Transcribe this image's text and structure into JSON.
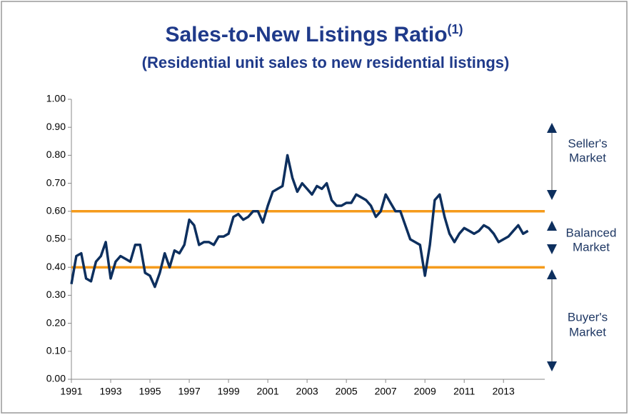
{
  "chart_data": {
    "type": "line",
    "title": "Sales-to-New Listings Ratio",
    "title_superscript": "(1)",
    "subtitle": "(Residential unit sales to new residential listings)",
    "xlim": [
      1991,
      2015.1
    ],
    "xticks": [
      1991,
      1993,
      1995,
      1997,
      1999,
      2001,
      2003,
      2005,
      2007,
      2009,
      2011,
      2013
    ],
    "ylim": [
      0,
      1
    ],
    "yticks": [
      {
        "value": 0,
        "label": "0.00"
      },
      {
        "value": 0.1,
        "label": "0.10"
      },
      {
        "value": 0.2,
        "label": "0.20"
      },
      {
        "value": 0.3,
        "label": "0.30"
      },
      {
        "value": 0.4,
        "label": "0.40"
      },
      {
        "value": 0.5,
        "label": "0.50"
      },
      {
        "value": 0.6,
        "label": "0.60"
      },
      {
        "value": 0.7,
        "label": "0.70"
      },
      {
        "value": 0.8,
        "label": "0.80"
      },
      {
        "value": 0.9,
        "label": "0.90"
      },
      {
        "value": 1,
        "label": "1.00"
      }
    ],
    "reference_lines": [
      0.6,
      0.4
    ],
    "reference_color": "#f59b1c",
    "annotations": [
      "Seller's",
      "Market",
      "Balanced",
      "Market",
      "Buyer's",
      "Market"
    ],
    "x": [
      1991,
      1991.25,
      1991.5,
      1991.75,
      1992,
      1992.25,
      1992.5,
      1992.75,
      1993,
      1993.25,
      1993.5,
      1993.75,
      1994,
      1994.25,
      1994.5,
      1994.75,
      1995,
      1995.25,
      1995.5,
      1995.75,
      1996,
      1996.25,
      1996.5,
      1996.75,
      1997,
      1997.25,
      1997.5,
      1997.75,
      1998,
      1998.25,
      1998.5,
      1998.75,
      1999,
      1999.25,
      1999.5,
      1999.75,
      2000,
      2000.25,
      2000.5,
      2000.75,
      2001,
      2001.25,
      2001.5,
      2001.75,
      2002,
      2002.25,
      2002.5,
      2002.75,
      2003,
      2003.25,
      2003.5,
      2003.75,
      2004,
      2004.25,
      2004.5,
      2004.75,
      2005,
      2005.25,
      2005.5,
      2005.75,
      2006,
      2006.25,
      2006.5,
      2006.75,
      2007,
      2007.25,
      2007.5,
      2007.75,
      2008,
      2008.25,
      2008.5,
      2008.75,
      2009,
      2009.25,
      2009.5,
      2009.75,
      2010,
      2010.25,
      2010.5,
      2010.75,
      2011,
      2011.25,
      2011.5,
      2011.75,
      2012,
      2012.25,
      2012.5,
      2012.75,
      2013,
      2013.25,
      2013.5,
      2013.75,
      2014,
      2014.25
    ],
    "series": [
      {
        "color": "#0d2f5e",
        "values": [
          0.34,
          0.44,
          0.45,
          0.36,
          0.35,
          0.42,
          0.44,
          0.49,
          0.36,
          0.42,
          0.44,
          0.43,
          0.42,
          0.48,
          0.48,
          0.38,
          0.37,
          0.33,
          0.38,
          0.45,
          0.4,
          0.46,
          0.45,
          0.48,
          0.57,
          0.55,
          0.48,
          0.49,
          0.49,
          0.48,
          0.51,
          0.51,
          0.52,
          0.58,
          0.59,
          0.57,
          0.58,
          0.6,
          0.6,
          0.56,
          0.62,
          0.67,
          0.68,
          0.69,
          0.8,
          0.72,
          0.67,
          0.7,
          0.68,
          0.66,
          0.69,
          0.68,
          0.7,
          0.64,
          0.62,
          0.62,
          0.63,
          0.63,
          0.66,
          0.65,
          0.64,
          0.62,
          0.58,
          0.6,
          0.66,
          0.63,
          0.6,
          0.6,
          0.55,
          0.5,
          0.49,
          0.48,
          0.37,
          0.48,
          0.64,
          0.66,
          0.58,
          0.52,
          0.49,
          0.52,
          0.54,
          0.53,
          0.52,
          0.53,
          0.55,
          0.54,
          0.52,
          0.49,
          0.5,
          0.51,
          0.53,
          0.55,
          0.52,
          0.53
        ]
      }
    ]
  }
}
